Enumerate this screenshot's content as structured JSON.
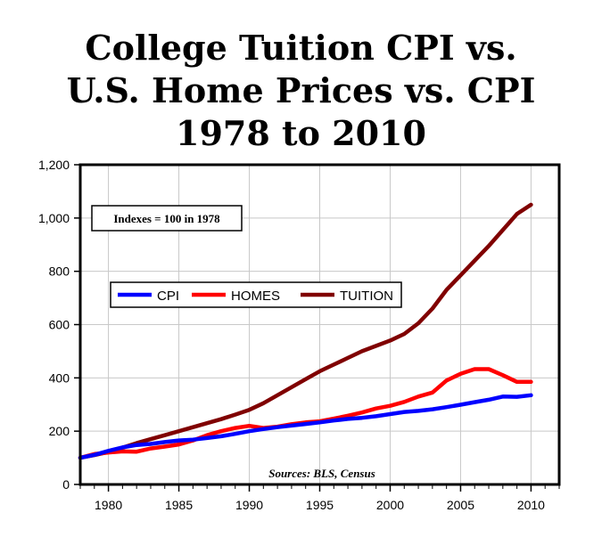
{
  "chart_data": {
    "type": "line",
    "title_lines": [
      "College Tuition CPI vs.",
      "U.S. Home Prices vs. CPI",
      "1978 to 2010"
    ],
    "annotation": "Indexes = 100 in 1978",
    "source": "Sources: BLS, Census",
    "xlim": [
      1978,
      2012
    ],
    "ylim": [
      0,
      1200
    ],
    "x_ticks": [
      1980,
      1985,
      1990,
      1995,
      2000,
      2005,
      2010
    ],
    "y_ticks": [
      0,
      200,
      400,
      600,
      800,
      1000,
      1200
    ],
    "y_tick_labels": [
      "0",
      "200",
      "400",
      "600",
      "800",
      "1,000",
      "1,200"
    ],
    "grid": true,
    "legend_position": "middle-left",
    "x": [
      1978,
      1979,
      1980,
      1981,
      1982,
      1983,
      1984,
      1985,
      1986,
      1987,
      1988,
      1989,
      1990,
      1991,
      1992,
      1993,
      1994,
      1995,
      1996,
      1997,
      1998,
      1999,
      2000,
      2001,
      2002,
      2003,
      2004,
      2005,
      2006,
      2007,
      2008,
      2009,
      2010
    ],
    "series": [
      {
        "name": "CPI",
        "color": "#0000ff",
        "values": [
          100,
          111,
          126,
          139,
          148,
          152,
          159,
          165,
          168,
          174,
          181,
          190,
          200,
          208,
          215,
          221,
          227,
          233,
          240,
          246,
          250,
          256,
          264,
          272,
          276,
          282,
          290,
          299,
          309,
          318,
          330,
          329,
          335
        ]
      },
      {
        "name": "HOMES",
        "color": "#ff0000",
        "values": [
          100,
          114,
          120,
          124,
          123,
          135,
          142,
          150,
          165,
          185,
          200,
          212,
          220,
          212,
          217,
          226,
          233,
          237,
          247,
          258,
          270,
          285,
          295,
          310,
          330,
          345,
          390,
          415,
          433,
          433,
          410,
          385,
          385
        ]
      },
      {
        "name": "TUITION",
        "color": "#800000",
        "values": [
          100,
          110,
          122,
          138,
          155,
          170,
          185,
          200,
          215,
          230,
          245,
          262,
          280,
          305,
          335,
          365,
          395,
          425,
          450,
          475,
          500,
          520,
          540,
          565,
          605,
          660,
          730,
          785,
          840,
          895,
          955,
          1015,
          1050
        ]
      }
    ]
  }
}
